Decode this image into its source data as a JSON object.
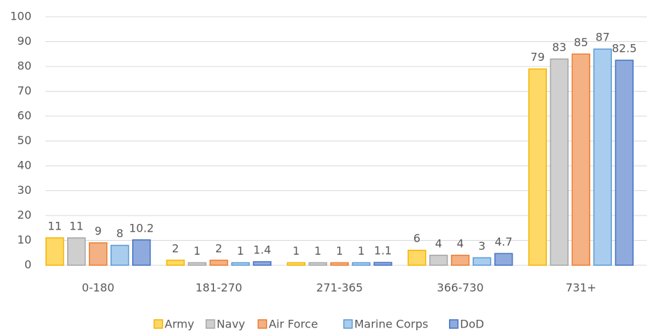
{
  "chart_data": {
    "type": "bar",
    "categories": [
      "0-180",
      "181-270",
      "271-365",
      "366-730",
      "731+"
    ],
    "series": [
      {
        "name": "Army",
        "color": "#ffd966",
        "edgecolor": "#f4b400",
        "values": [
          11,
          2,
          1,
          6,
          79
        ]
      },
      {
        "name": "Navy",
        "color": "#cfcfcf",
        "edgecolor": "#a5a5a5",
        "values": [
          11,
          1,
          1,
          4,
          83
        ]
      },
      {
        "name": "Air Force",
        "color": "#f4b183",
        "edgecolor": "#ed7d31",
        "values": [
          9,
          2,
          1,
          4,
          85
        ]
      },
      {
        "name": "Marine Corps",
        "color": "#a9cdee",
        "edgecolor": "#5b9bd5",
        "values": [
          8,
          1,
          1,
          3,
          87
        ]
      },
      {
        "name": "DoD",
        "color": "#8faadc",
        "edgecolor": "#4472c4",
        "values": [
          10.2,
          1.4,
          1.1,
          4.7,
          82.5
        ]
      }
    ],
    "ylim": [
      0,
      100
    ],
    "yticks": [
      0,
      10,
      20,
      30,
      40,
      50,
      60,
      70,
      80,
      90,
      100
    ],
    "grid": true,
    "data_labels": true,
    "legend": "bottom"
  }
}
